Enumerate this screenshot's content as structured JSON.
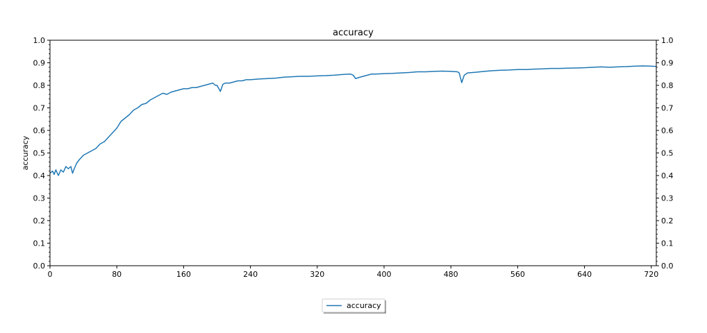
{
  "chart_data": {
    "type": "line",
    "title": "accuracy",
    "xlabel": "",
    "ylabel": "accuracy",
    "xlim": [
      0,
      726
    ],
    "ylim": [
      0.0,
      1.0
    ],
    "xticks": [
      0,
      80,
      160,
      240,
      320,
      400,
      480,
      560,
      640,
      720
    ],
    "yticks": [
      "0.0",
      "0.1",
      "0.2",
      "0.3",
      "0.4",
      "0.5",
      "0.6",
      "0.7",
      "0.8",
      "0.9",
      "1.0"
    ],
    "grid": false,
    "legend_position": "bottom-center, outside",
    "series": [
      {
        "name": "accuracy",
        "color": "#1f77b4",
        "points": [
          [
            0,
            0.41
          ],
          [
            3,
            0.42
          ],
          [
            5,
            0.405
          ],
          [
            7,
            0.425
          ],
          [
            10,
            0.4
          ],
          [
            13,
            0.425
          ],
          [
            16,
            0.415
          ],
          [
            19,
            0.44
          ],
          [
            22,
            0.43
          ],
          [
            25,
            0.44
          ],
          [
            27,
            0.41
          ],
          [
            29,
            0.43
          ],
          [
            32,
            0.455
          ],
          [
            35,
            0.47
          ],
          [
            40,
            0.49
          ],
          [
            45,
            0.5
          ],
          [
            50,
            0.51
          ],
          [
            55,
            0.52
          ],
          [
            60,
            0.54
          ],
          [
            65,
            0.55
          ],
          [
            70,
            0.57
          ],
          [
            75,
            0.59
          ],
          [
            80,
            0.61
          ],
          [
            85,
            0.64
          ],
          [
            90,
            0.655
          ],
          [
            95,
            0.67
          ],
          [
            100,
            0.69
          ],
          [
            105,
            0.7
          ],
          [
            110,
            0.715
          ],
          [
            115,
            0.72
          ],
          [
            120,
            0.735
          ],
          [
            125,
            0.745
          ],
          [
            130,
            0.755
          ],
          [
            135,
            0.765
          ],
          [
            140,
            0.76
          ],
          [
            145,
            0.77
          ],
          [
            150,
            0.775
          ],
          [
            155,
            0.78
          ],
          [
            160,
            0.785
          ],
          [
            165,
            0.785
          ],
          [
            170,
            0.79
          ],
          [
            175,
            0.79
          ],
          [
            180,
            0.795
          ],
          [
            185,
            0.8
          ],
          [
            190,
            0.805
          ],
          [
            195,
            0.81
          ],
          [
            198,
            0.8
          ],
          [
            200,
            0.8
          ],
          [
            204,
            0.773
          ],
          [
            207,
            0.805
          ],
          [
            210,
            0.81
          ],
          [
            215,
            0.81
          ],
          [
            220,
            0.815
          ],
          [
            225,
            0.82
          ],
          [
            230,
            0.82
          ],
          [
            235,
            0.825
          ],
          [
            240,
            0.825
          ],
          [
            250,
            0.828
          ],
          [
            260,
            0.83
          ],
          [
            270,
            0.832
          ],
          [
            280,
            0.836
          ],
          [
            290,
            0.838
          ],
          [
            300,
            0.84
          ],
          [
            310,
            0.84
          ],
          [
            320,
            0.842
          ],
          [
            330,
            0.843
          ],
          [
            340,
            0.845
          ],
          [
            350,
            0.848
          ],
          [
            360,
            0.85
          ],
          [
            363,
            0.845
          ],
          [
            366,
            0.83
          ],
          [
            370,
            0.835
          ],
          [
            375,
            0.84
          ],
          [
            380,
            0.845
          ],
          [
            385,
            0.85
          ],
          [
            390,
            0.85
          ],
          [
            400,
            0.852
          ],
          [
            410,
            0.853
          ],
          [
            420,
            0.855
          ],
          [
            430,
            0.857
          ],
          [
            440,
            0.86
          ],
          [
            450,
            0.86
          ],
          [
            460,
            0.862
          ],
          [
            470,
            0.863
          ],
          [
            480,
            0.862
          ],
          [
            488,
            0.86
          ],
          [
            490,
            0.855
          ],
          [
            493,
            0.812
          ],
          [
            496,
            0.845
          ],
          [
            500,
            0.855
          ],
          [
            510,
            0.858
          ],
          [
            520,
            0.862
          ],
          [
            530,
            0.865
          ],
          [
            540,
            0.867
          ],
          [
            550,
            0.868
          ],
          [
            560,
            0.87
          ],
          [
            570,
            0.87
          ],
          [
            580,
            0.872
          ],
          [
            590,
            0.873
          ],
          [
            600,
            0.875
          ],
          [
            610,
            0.875
          ],
          [
            620,
            0.876
          ],
          [
            630,
            0.877
          ],
          [
            640,
            0.878
          ],
          [
            650,
            0.88
          ],
          [
            660,
            0.882
          ],
          [
            670,
            0.88
          ],
          [
            680,
            0.882
          ],
          [
            690,
            0.883
          ],
          [
            700,
            0.885
          ],
          [
            710,
            0.886
          ],
          [
            720,
            0.885
          ],
          [
            726,
            0.884
          ]
        ]
      }
    ]
  }
}
